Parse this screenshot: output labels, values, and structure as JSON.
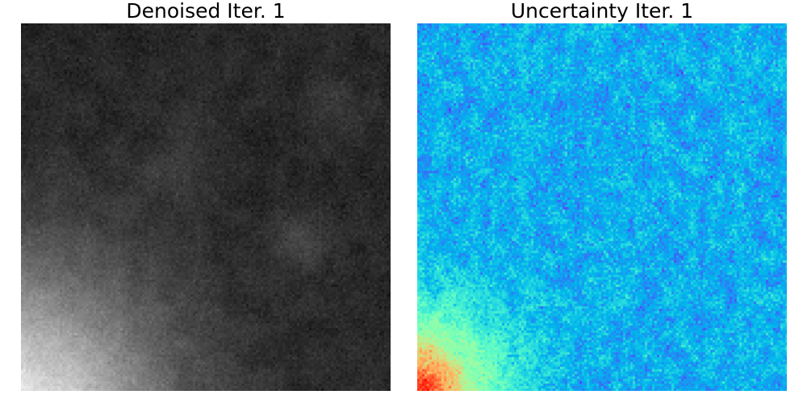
{
  "panels": [
    {
      "title": "Denoised Iter. 1",
      "colormap": "gray"
    },
    {
      "title": "Uncertainty Iter. 1",
      "colormap": "rainbow"
    }
  ]
}
